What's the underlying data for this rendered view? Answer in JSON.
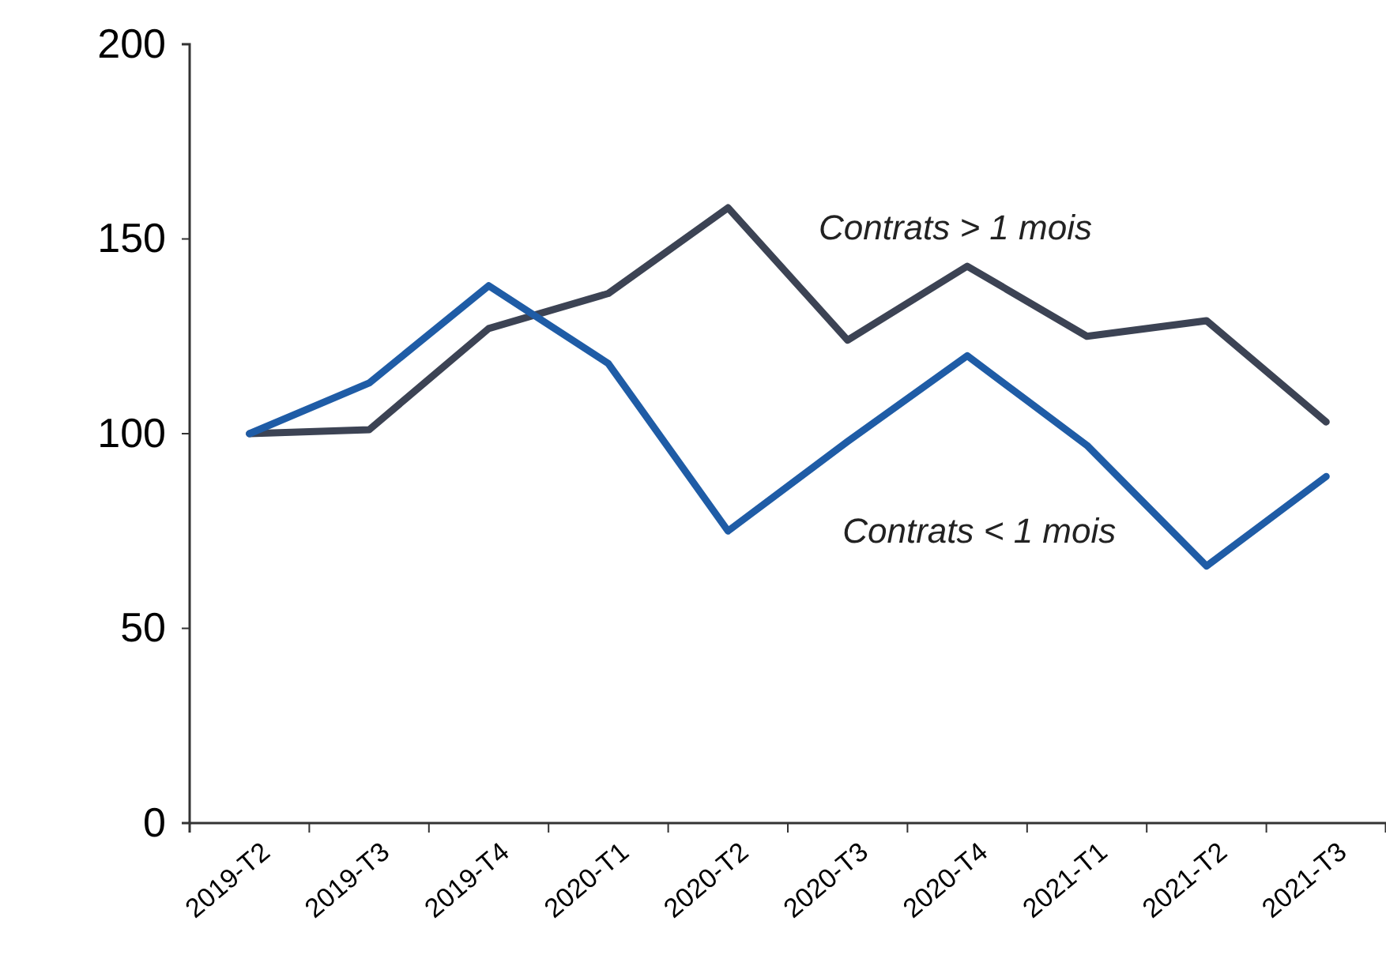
{
  "chart_data": {
    "type": "line",
    "categories": [
      "2019-T2",
      "2019-T3",
      "2019-T4",
      "2020-T1",
      "2020-T2",
      "2020-T3",
      "2020-T4",
      "2021-T1",
      "2021-T2",
      "2021-T3"
    ],
    "series": [
      {
        "name": "Contrats > 1 mois",
        "color": "#3c4354",
        "values": [
          100,
          101,
          127,
          136,
          158,
          124,
          143,
          125,
          129,
          103
        ]
      },
      {
        "name": "Contrats < 1 mois",
        "color": "#1f5ca6",
        "values": [
          100,
          113,
          138,
          118,
          75,
          98,
          120,
          97,
          66,
          89
        ]
      }
    ],
    "ylim": [
      0,
      200
    ],
    "yticks": [
      0,
      50,
      100,
      150,
      200
    ],
    "grid": false,
    "legend": false
  }
}
